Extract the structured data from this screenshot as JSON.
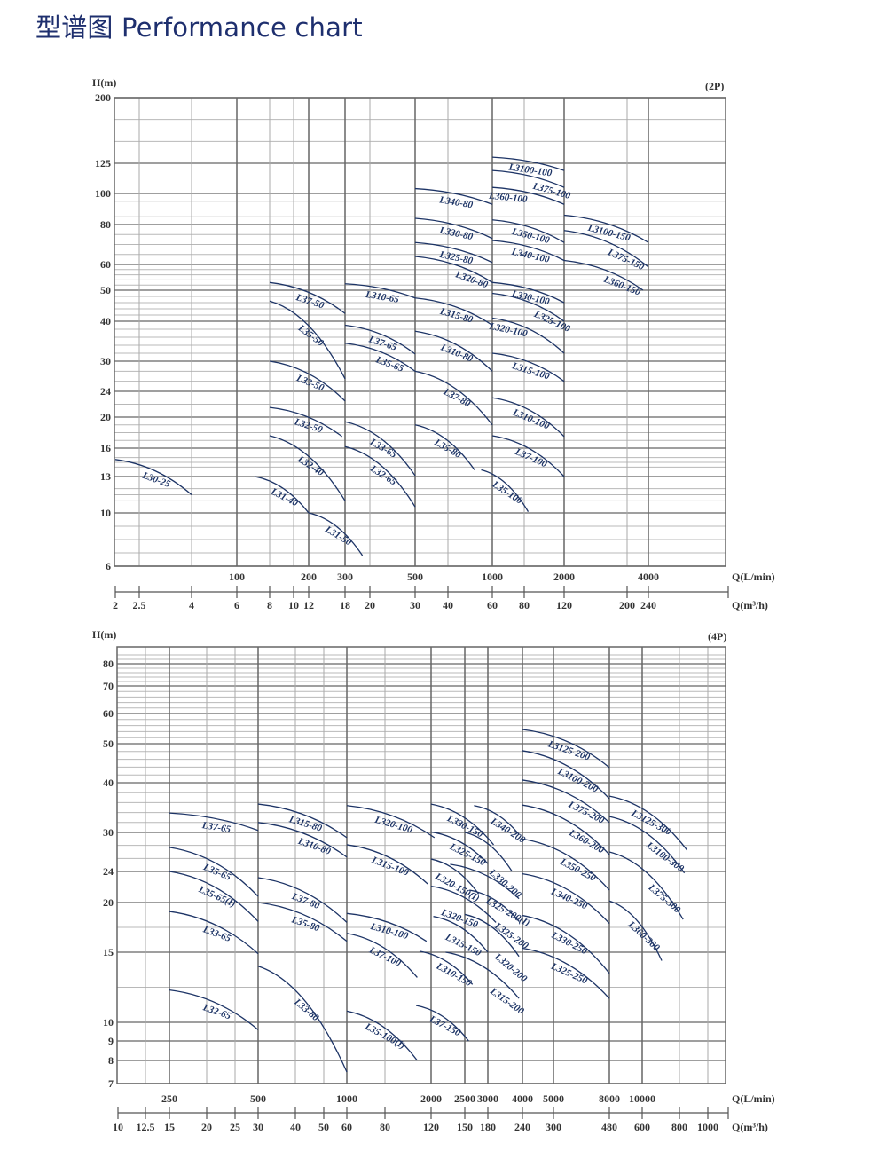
{
  "title": "型谱图 Performance chart",
  "chart_data": [
    {
      "type": "line",
      "speed_label": "(2P)",
      "ylabel": "H(m)",
      "xlabel_lmin": "Q(L/min)",
      "xlabel_m3h": "Q(m³/h)",
      "y_scale": "log-like",
      "y_ticks": [
        6,
        10,
        13,
        16,
        20,
        24,
        30,
        40,
        50,
        60,
        80,
        100,
        125,
        200
      ],
      "x_ticks_m3h": [
        2,
        2.5,
        4,
        6,
        8,
        10,
        12,
        18,
        20,
        30,
        40,
        60,
        80,
        120,
        200,
        240
      ],
      "x_ticks_lmin": [
        100,
        200,
        300,
        500,
        1000,
        2000,
        4000
      ],
      "grid": true,
      "color": "#1d3466",
      "curves": [
        {
          "name": "L30-25",
          "q": [
            2,
            4
          ],
          "h": [
            14.8,
            11.5
          ]
        },
        {
          "name": "L31-40",
          "q": [
            7.1,
            12
          ],
          "h": [
            13,
            10
          ]
        },
        {
          "name": "L31-50",
          "q": [
            12,
            19.4
          ],
          "h": [
            10,
            6.8
          ]
        },
        {
          "name": "L32-40",
          "q": [
            8,
            18
          ],
          "h": [
            17.6,
            11
          ]
        },
        {
          "name": "L32-50",
          "q": [
            8,
            17.5
          ],
          "h": [
            21.5,
            17.5
          ]
        },
        {
          "name": "L33-50",
          "q": [
            8,
            18
          ],
          "h": [
            30,
            22.5
          ]
        },
        {
          "name": "L35-50",
          "q": [
            8,
            18
          ],
          "h": [
            46.5,
            26.5
          ]
        },
        {
          "name": "L37-50",
          "q": [
            8,
            18
          ],
          "h": [
            53,
            42.5
          ]
        },
        {
          "name": "L310-65",
          "q": [
            18,
            30
          ],
          "h": [
            52.5,
            47.5
          ]
        },
        {
          "name": "L37-65",
          "q": [
            18,
            30
          ],
          "h": [
            39,
            31.8
          ]
        },
        {
          "name": "L35-65",
          "q": [
            18,
            30
          ],
          "h": [
            34.5,
            28
          ]
        },
        {
          "name": "L33-65",
          "q": [
            18,
            30
          ],
          "h": [
            19.4,
            13.1
          ]
        },
        {
          "name": "L32-65",
          "q": [
            18,
            30
          ],
          "h": [
            16.2,
            10.5
          ]
        },
        {
          "name": "L340-80",
          "q": [
            30,
            60
          ],
          "h": [
            104,
            93
          ]
        },
        {
          "name": "L330-80",
          "q": [
            30,
            60
          ],
          "h": [
            84,
            73
          ]
        },
        {
          "name": "L325-80",
          "q": [
            30,
            60
          ],
          "h": [
            71,
            61
          ]
        },
        {
          "name": "L320-80",
          "q": [
            30,
            60
          ],
          "h": [
            64,
            53
          ]
        },
        {
          "name": "L315-80",
          "q": [
            30,
            60
          ],
          "h": [
            47.5,
            39
          ]
        },
        {
          "name": "L310-80",
          "q": [
            30,
            60
          ],
          "h": [
            37.5,
            28
          ]
        },
        {
          "name": "L37-80",
          "q": [
            30,
            60
          ],
          "h": [
            28,
            19
          ]
        },
        {
          "name": "L35-80",
          "q": [
            30,
            52
          ],
          "h": [
            19,
            13.7
          ]
        },
        {
          "name": "L3100-100",
          "q": [
            60,
            120
          ],
          "h": [
            132,
            119
          ]
        },
        {
          "name": "L375-100",
          "q": [
            60,
            120
          ],
          "h": [
            119,
            105
          ]
        },
        {
          "name": "L360-100",
          "q": [
            60,
            120
          ],
          "h": [
            105,
            93
          ]
        },
        {
          "name": "L350-100",
          "q": [
            60,
            120
          ],
          "h": [
            83,
            71
          ]
        },
        {
          "name": "L340-100",
          "q": [
            60,
            120
          ],
          "h": [
            72,
            62
          ]
        },
        {
          "name": "L330-100",
          "q": [
            60,
            120
          ],
          "h": [
            53,
            46
          ]
        },
        {
          "name": "L325-100",
          "q": [
            60,
            120
          ],
          "h": [
            49,
            40
          ]
        },
        {
          "name": "L320-100",
          "q": [
            60,
            120
          ],
          "h": [
            41,
            32
          ]
        },
        {
          "name": "L315-100",
          "q": [
            60,
            120
          ],
          "h": [
            32,
            26
          ]
        },
        {
          "name": "L310-100",
          "q": [
            60,
            120
          ],
          "h": [
            23,
            17.5
          ]
        },
        {
          "name": "L37-100",
          "q": [
            60,
            120
          ],
          "h": [
            17.6,
            13
          ]
        },
        {
          "name": "L35-100",
          "q": [
            55,
            84
          ],
          "h": [
            13.7,
            10.1
          ]
        },
        {
          "name": "L3100-150",
          "q": [
            120,
            240
          ],
          "h": [
            86,
            71
          ]
        },
        {
          "name": "L375-150",
          "q": [
            120,
            240
          ],
          "h": [
            77,
            59
          ]
        },
        {
          "name": "L360-150",
          "q": [
            120,
            230
          ],
          "h": [
            62,
            50
          ]
        }
      ]
    },
    {
      "type": "line",
      "speed_label": "(4P)",
      "ylabel": "H(m)",
      "xlabel_lmin": "Q(L/min)",
      "xlabel_m3h": "Q(m³/h)",
      "y_scale": "log-like",
      "y_ticks": [
        7,
        8,
        9,
        10,
        15,
        20,
        24,
        30,
        40,
        50,
        60,
        70,
        80
      ],
      "x_ticks_m3h": [
        10,
        12.5,
        15,
        20,
        25,
        30,
        40,
        50,
        60,
        80,
        120,
        150,
        180,
        240,
        300,
        480,
        600,
        800,
        1000
      ],
      "x_ticks_lmin": [
        250,
        500,
        1000,
        2000,
        2500,
        3000,
        4000,
        5000,
        8000,
        10000
      ],
      "grid": true,
      "color": "#1d3466",
      "curves": [
        {
          "name": "L37-65",
          "q": [
            15,
            30
          ],
          "h": [
            33.9,
            30.4
          ]
        },
        {
          "name": "L35-65",
          "q": [
            15,
            30
          ],
          "h": [
            27.7,
            20.8
          ]
        },
        {
          "name": "L35-65(I)",
          "q": [
            15,
            30
          ],
          "h": [
            24,
            18.1
          ]
        },
        {
          "name": "L33-65",
          "q": [
            15,
            30
          ],
          "h": [
            19.1,
            14.9
          ]
        },
        {
          "name": "L32-65",
          "q": [
            15,
            30
          ],
          "h": [
            12.3,
            9.6
          ]
        },
        {
          "name": "L315-80",
          "q": [
            30,
            60
          ],
          "h": [
            35.7,
            29.2
          ]
        },
        {
          "name": "L310-80",
          "q": [
            30,
            60
          ],
          "h": [
            32,
            26.2
          ]
        },
        {
          "name": "L37-80",
          "q": [
            30,
            60
          ],
          "h": [
            23.2,
            18
          ]
        },
        {
          "name": "L35-80",
          "q": [
            30,
            60
          ],
          "h": [
            20,
            16.1
          ]
        },
        {
          "name": "L33-80",
          "q": [
            30,
            60
          ],
          "h": [
            14,
            7.5
          ]
        },
        {
          "name": "L320-100",
          "q": [
            60,
            123
          ],
          "h": [
            35.4,
            29.2
          ]
        },
        {
          "name": "L315-100",
          "q": [
            60,
            117
          ],
          "h": [
            28.1,
            22.4
          ]
        },
        {
          "name": "L310-100",
          "q": [
            60,
            116
          ],
          "h": [
            18.9,
            16.1
          ]
        },
        {
          "name": "L37-100",
          "q": [
            60,
            108
          ],
          "h": [
            16.9,
            13.2
          ]
        },
        {
          "name": "L35-100(I)",
          "q": [
            60,
            108
          ],
          "h": [
            10.8,
            8
          ]
        },
        {
          "name": "L330-150",
          "q": [
            120,
            190
          ],
          "h": [
            35.7,
            28.1
          ]
        },
        {
          "name": "L340-200",
          "q": [
            162,
            234
          ],
          "h": [
            35.4,
            29.7
          ]
        },
        {
          "name": "L325-150",
          "q": [
            120,
            180
          ],
          "h": [
            30.1,
            25.2
          ]
        },
        {
          "name": "L330-200",
          "q": [
            150,
            222
          ],
          "h": [
            30,
            24
          ]
        },
        {
          "name": "L320-150(I)",
          "q": [
            120,
            168
          ],
          "h": [
            25.9,
            21.1
          ]
        },
        {
          "name": "L325-200(I)",
          "q": [
            137,
            234
          ],
          "h": [
            25.1,
            20.5
          ]
        },
        {
          "name": "L320-150",
          "q": [
            120,
            194
          ],
          "h": [
            22.1,
            18
          ]
        },
        {
          "name": "L325-200",
          "q": [
            156,
            234
          ],
          "h": [
            21.6,
            18.1
          ]
        },
        {
          "name": "L315-150",
          "q": [
            122,
            180
          ],
          "h": [
            18.6,
            15
          ]
        },
        {
          "name": "L320-200",
          "q": [
            150,
            234
          ],
          "h": [
            18.8,
            14.7
          ]
        },
        {
          "name": "L310-150",
          "q": [
            110,
            160
          ],
          "h": [
            15.1,
            12.7
          ]
        },
        {
          "name": "L315-200",
          "q": [
            133,
            234
          ],
          "h": [
            15,
            11.7
          ]
        },
        {
          "name": "L37-150",
          "q": [
            107,
            155
          ],
          "h": [
            11.2,
            9
          ]
        },
        {
          "name": "L3125-200",
          "q": [
            240,
            480
          ],
          "h": [
            54.7,
            43.9
          ]
        },
        {
          "name": "L3100-200",
          "q": [
            240,
            480
          ],
          "h": [
            48.2,
            36.8
          ]
        },
        {
          "name": "L375-200",
          "q": [
            240,
            480
          ],
          "h": [
            40.7,
            32
          ]
        },
        {
          "name": "L360-200",
          "q": [
            240,
            480
          ],
          "h": [
            35.5,
            26.6
          ]
        },
        {
          "name": "L350-250",
          "q": [
            240,
            480
          ],
          "h": [
            29,
            21.6
          ]
        },
        {
          "name": "L340-250",
          "q": [
            240,
            480
          ],
          "h": [
            23.7,
            17.9
          ]
        },
        {
          "name": "L330-250",
          "q": [
            240,
            480
          ],
          "h": [
            18.7,
            13.5
          ]
        },
        {
          "name": "L325-250",
          "q": [
            240,
            480
          ],
          "h": [
            15.4,
            11.7
          ]
        },
        {
          "name": "L3125-300",
          "q": [
            480,
            853
          ],
          "h": [
            37.3,
            27.3
          ]
        },
        {
          "name": "L3100-300",
          "q": [
            480,
            835
          ],
          "h": [
            33.2,
            23.8
          ]
        },
        {
          "name": "L375-300",
          "q": [
            480,
            826
          ],
          "h": [
            27,
            18.3
          ]
        },
        {
          "name": "L360-300",
          "q": [
            480,
            705
          ],
          "h": [
            20.2,
            14.4
          ]
        }
      ]
    }
  ]
}
